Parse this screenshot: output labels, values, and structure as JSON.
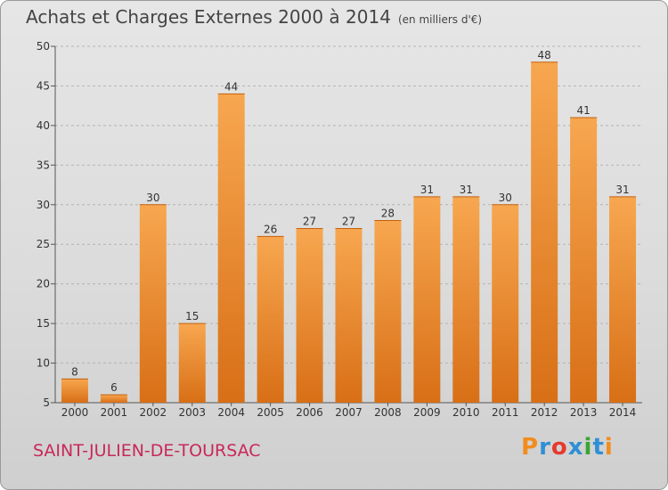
{
  "title": "Achats et Charges Externes 2000 à 2014",
  "unit": "(en milliers d'€)",
  "place": "SAINT-JULIEN-DE-TOURSAC",
  "logo": {
    "text": "Proxiti",
    "colors": [
      "#f28c1e",
      "#2f8fd5",
      "#e53a2f",
      "#2f8fd5",
      "#3aa535",
      "#2f8fd5",
      "#f28c1e"
    ]
  },
  "colors": {
    "bar_top": "#f7a750",
    "bar_bottom": "#d86f16",
    "grid": "#b4b4b4",
    "axis": "#555555"
  },
  "chart_data": {
    "type": "bar",
    "categories": [
      "2000",
      "2001",
      "2002",
      "2003",
      "2004",
      "2005",
      "2006",
      "2007",
      "2008",
      "2009",
      "2010",
      "2011",
      "2012",
      "2013",
      "2014"
    ],
    "values": [
      8,
      6,
      30,
      15,
      44,
      26,
      27,
      27,
      28,
      31,
      31,
      30,
      48,
      41,
      31
    ],
    "title": "Achats et Charges Externes 2000 à 2014",
    "ylim": [
      5,
      50
    ],
    "yticks": [
      5,
      10,
      15,
      20,
      25,
      30,
      35,
      40,
      45,
      50
    ],
    "grid": true,
    "legend": "none"
  }
}
